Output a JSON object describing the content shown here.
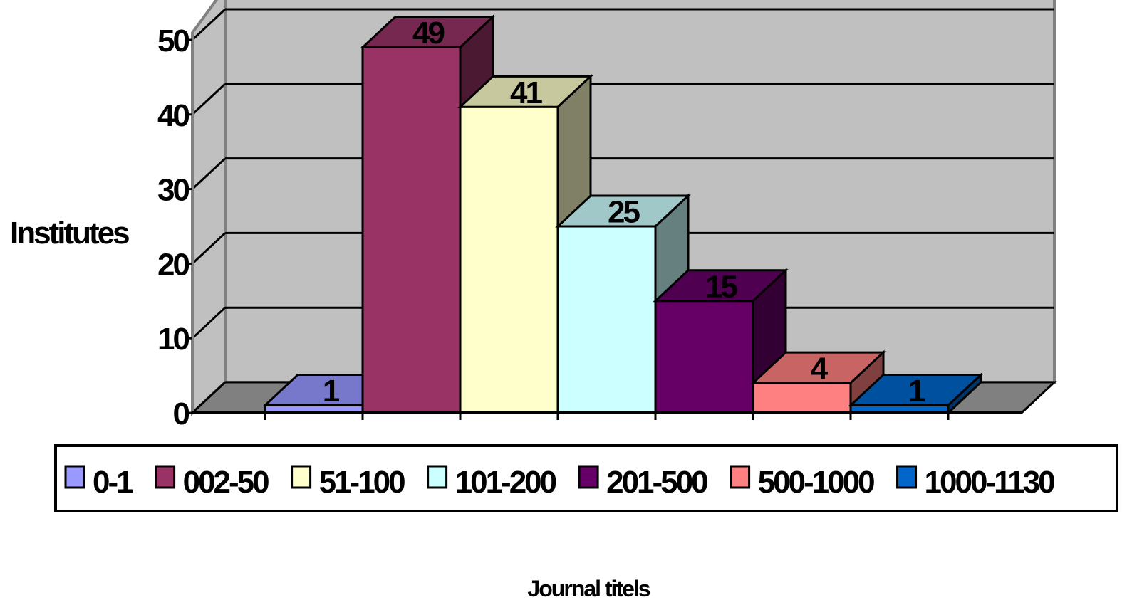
{
  "chart_data": {
    "type": "bar",
    "three_d": true,
    "categories": [
      "0-1",
      "002-50",
      "51-100",
      "101-200",
      "201-500",
      "500-1000",
      "1000-1130"
    ],
    "values": [
      1,
      49,
      41,
      25,
      15,
      4,
      1
    ],
    "colors": {
      "front": [
        "#9999ff",
        "#993366",
        "#ffffcc",
        "#ccffff",
        "#660066",
        "#ff8080",
        "#0066cc"
      ],
      "top": [
        "#7777cc",
        "#772850",
        "#c8c89e",
        "#a0c8c8",
        "#500050",
        "#c86464",
        "#0050a0"
      ],
      "side": [
        "#4c4c80",
        "#4c1933",
        "#808066",
        "#668080",
        "#330033",
        "#804040",
        "#003366"
      ]
    },
    "ylabel": "Institutes",
    "xlabel": "Journal titels",
    "ylim": [
      0,
      50
    ],
    "yticks": [
      "0",
      "10",
      "20",
      "30",
      "40",
      "50"
    ],
    "grid": true,
    "legend_position": "bottom",
    "wall_color": "#c0c0c0",
    "floor_color": "#808080"
  }
}
